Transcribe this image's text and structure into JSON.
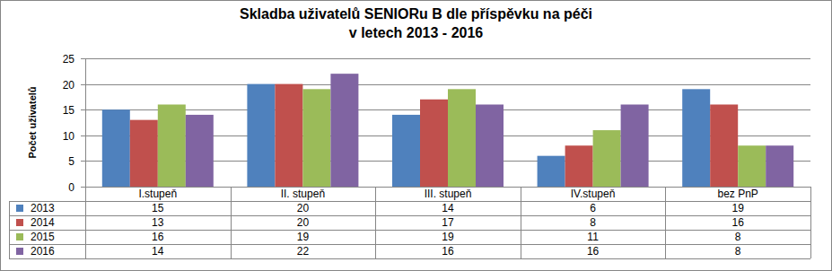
{
  "chart_data": {
    "type": "bar",
    "title": "Skladba uživatelů SENIORu B dle příspěvku na péči\nv letech 2013 - 2016",
    "y_label": "Počet uživatelů",
    "categories": [
      "I.stupeň",
      "II. stupeň",
      "III. stupeň",
      "IV.stupeň",
      "bez PnP"
    ],
    "series": [
      {
        "name": "2013",
        "color": "#4f81bd",
        "values": [
          15,
          20,
          14,
          6,
          19
        ]
      },
      {
        "name": "2014",
        "color": "#c0504d",
        "values": [
          13,
          20,
          17,
          8,
          16
        ]
      },
      {
        "name": "2015",
        "color": "#9bbb59",
        "values": [
          16,
          19,
          19,
          11,
          8
        ]
      },
      {
        "name": "2016",
        "color": "#8064a2",
        "values": [
          14,
          22,
          16,
          16,
          8
        ]
      }
    ],
    "ylim": [
      0,
      25
    ],
    "yticks": [
      0,
      5,
      10,
      15,
      20,
      25
    ],
    "grid": true,
    "legend": "bottom"
  }
}
